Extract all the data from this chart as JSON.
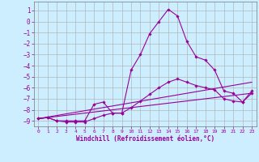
{
  "xlabel": "Windchill (Refroidissement éolien,°C)",
  "background_color": "#cceeff",
  "grid_color": "#aaaaaa",
  "line_color": "#990099",
  "xlim": [
    -0.5,
    23.5
  ],
  "ylim": [
    -9.5,
    1.8
  ],
  "yticks": [
    1,
    0,
    -1,
    -2,
    -3,
    -4,
    -5,
    -6,
    -7,
    -8,
    -9
  ],
  "xticks": [
    0,
    1,
    2,
    3,
    4,
    5,
    6,
    7,
    8,
    9,
    10,
    11,
    12,
    13,
    14,
    15,
    16,
    17,
    18,
    19,
    20,
    21,
    22,
    23
  ],
  "series": [
    {
      "x": [
        0,
        1,
        2,
        3,
        4,
        5,
        6,
        7,
        8,
        9,
        10,
        11,
        12,
        13,
        14,
        15,
        16,
        17,
        18,
        19,
        20,
        21,
        22,
        23
      ],
      "y": [
        -8.8,
        -8.7,
        -9.0,
        -9.0,
        -9.0,
        -9.0,
        -7.5,
        -7.3,
        -8.3,
        -8.3,
        -4.4,
        -3.0,
        -1.1,
        0.0,
        1.1,
        0.5,
        -1.8,
        -3.2,
        -3.5,
        -4.4,
        -6.3,
        -6.5,
        -7.3,
        -6.5
      ],
      "has_markers": true
    },
    {
      "x": [
        0,
        1,
        2,
        3,
        4,
        5,
        6,
        7,
        8,
        9,
        10,
        11,
        12,
        13,
        14,
        15,
        16,
        17,
        18,
        19,
        20,
        21,
        22,
        23
      ],
      "y": [
        -8.8,
        -8.7,
        -9.0,
        -9.1,
        -9.1,
        -9.1,
        -8.8,
        -8.5,
        -8.3,
        -8.3,
        -7.8,
        -7.2,
        -6.6,
        -6.0,
        -5.5,
        -5.2,
        -5.5,
        -5.8,
        -6.0,
        -6.2,
        -7.0,
        -7.2,
        -7.3,
        -6.3
      ],
      "has_markers": true
    },
    {
      "x": [
        0,
        23
      ],
      "y": [
        -8.8,
        -5.5
      ],
      "has_markers": false
    },
    {
      "x": [
        0,
        23
      ],
      "y": [
        -8.8,
        -6.5
      ],
      "has_markers": false
    }
  ]
}
